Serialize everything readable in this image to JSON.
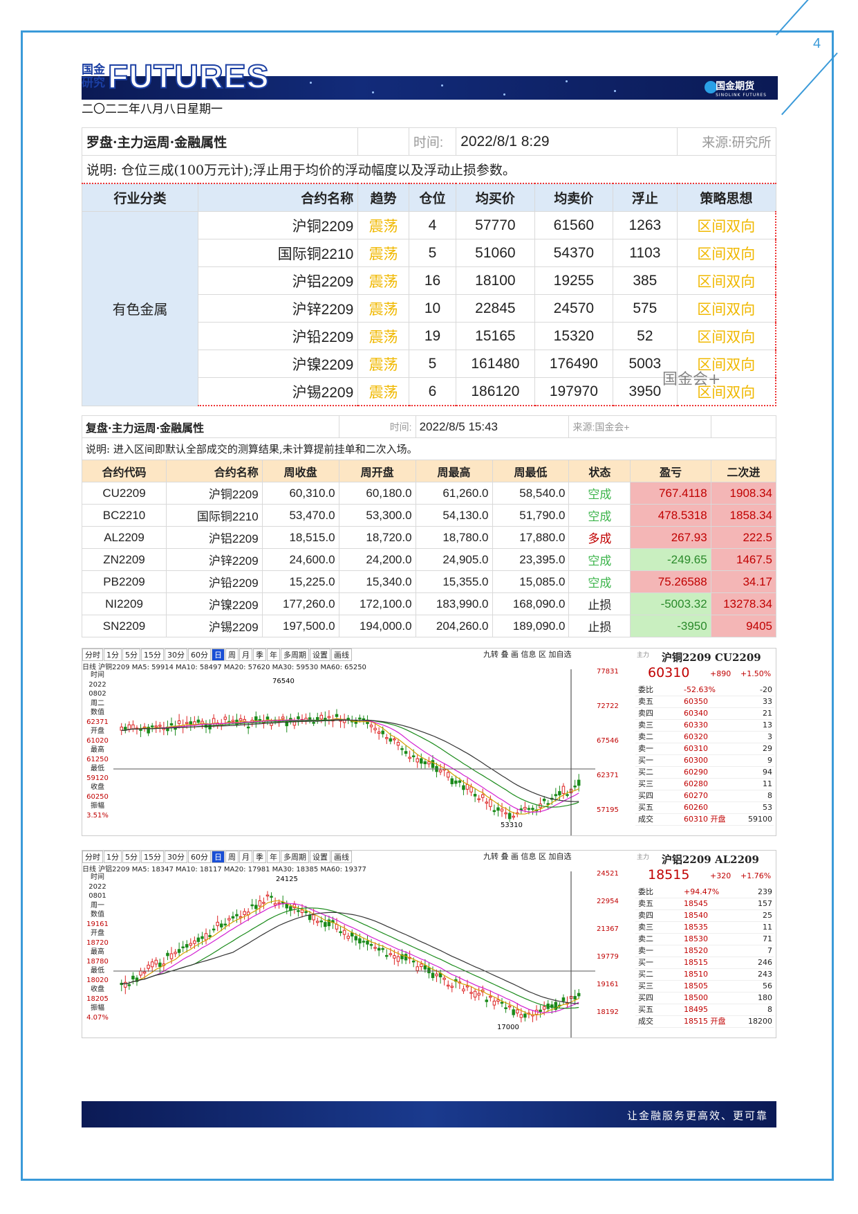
{
  "page_number": "4",
  "brand": {
    "logo_line1": "国金",
    "logo_line2": "研究",
    "title": "FUTURES",
    "company": "国金期货",
    "company_en": "SINOLINK FUTURES"
  },
  "date_line": "二〇二二年八月八日星期一",
  "watermark": "国金会+",
  "table1": {
    "title": "罗盘·主力运周·金融属性",
    "time_label": "时间:",
    "time_value": "2022/8/1 8:29",
    "source": "来源:研究所",
    "note": "说明: 仓位三成(100万元计);浮止用于均价的浮动幅度以及浮动止损参数。",
    "headers": [
      "行业分类",
      "合约名称",
      "趋势",
      "仓位",
      "均买价",
      "均卖价",
      "浮止",
      "策略思想"
    ],
    "category": "有色金属",
    "rows": [
      {
        "name": "沪铜2209",
        "trend": "震荡",
        "pos": "4",
        "buy": "57770",
        "sell": "61560",
        "stop": "1263",
        "strategy": "区间双向"
      },
      {
        "name": "国际铜2210",
        "trend": "震荡",
        "pos": "5",
        "buy": "51060",
        "sell": "54370",
        "stop": "1103",
        "strategy": "区间双向"
      },
      {
        "name": "沪铝2209",
        "trend": "震荡",
        "pos": "16",
        "buy": "18100",
        "sell": "19255",
        "stop": "385",
        "strategy": "区间双向"
      },
      {
        "name": "沪锌2209",
        "trend": "震荡",
        "pos": "10",
        "buy": "22845",
        "sell": "24570",
        "stop": "575",
        "strategy": "区间双向"
      },
      {
        "name": "沪铅2209",
        "trend": "震荡",
        "pos": "19",
        "buy": "15165",
        "sell": "15320",
        "stop": "52",
        "strategy": "区间双向"
      },
      {
        "name": "沪镍2209",
        "trend": "震荡",
        "pos": "5",
        "buy": "161480",
        "sell": "176490",
        "stop": "5003",
        "strategy": "区间双向"
      },
      {
        "name": "沪锡2209",
        "trend": "震荡",
        "pos": "6",
        "buy": "186120",
        "sell": "197970",
        "stop": "3950",
        "strategy": "区间双向"
      }
    ]
  },
  "table2": {
    "title": "复盘·主力运周·金融属性",
    "time_label": "时间:",
    "time_value": "2022/8/5 15:43",
    "source": "来源:国金会+",
    "note": "说明: 进入区间即默认全部成交的测算结果,未计算提前挂单和二次入场。",
    "headers": [
      "合约代码",
      "合约名称",
      "周收盘",
      "周开盘",
      "周最高",
      "周最低",
      "状态",
      "盈亏",
      "二次进"
    ],
    "rows": [
      {
        "code": "CU2209",
        "name": "沪铜2209",
        "close": "60,310.0",
        "open": "60,180.0",
        "high": "61,260.0",
        "low": "58,540.0",
        "status": "空成",
        "pl": "767.4118",
        "second": "1908.34",
        "sign": "pos",
        "scolor": "green"
      },
      {
        "code": "BC2210",
        "name": "国际铜2210",
        "close": "53,470.0",
        "open": "53,300.0",
        "high": "54,130.0",
        "low": "51,790.0",
        "status": "空成",
        "pl": "478.5318",
        "second": "1858.34",
        "sign": "pos",
        "scolor": "green"
      },
      {
        "code": "AL2209",
        "name": "沪铝2209",
        "close": "18,515.0",
        "open": "18,720.0",
        "high": "18,780.0",
        "low": "17,880.0",
        "status": "多成",
        "pl": "267.93",
        "second": "222.5",
        "sign": "pos",
        "scolor": "red"
      },
      {
        "code": "ZN2209",
        "name": "沪锌2209",
        "close": "24,600.0",
        "open": "24,200.0",
        "high": "24,905.0",
        "low": "23,395.0",
        "status": "空成",
        "pl": "-249.65",
        "second": "1467.5",
        "sign": "neg",
        "scolor": "green"
      },
      {
        "code": "PB2209",
        "name": "沪铅2209",
        "close": "15,225.0",
        "open": "15,340.0",
        "high": "15,355.0",
        "low": "15,085.0",
        "status": "空成",
        "pl": "75.26588",
        "second": "34.17",
        "sign": "pos",
        "scolor": "green"
      },
      {
        "code": "NI2209",
        "name": "沪镍2209",
        "close": "177,260.0",
        "open": "172,100.0",
        "high": "183,990.0",
        "low": "168,090.0",
        "status": "止损",
        "pl": "-5003.32",
        "second": "13278.34",
        "sign": "neg",
        "scolor": "plain"
      },
      {
        "code": "SN2209",
        "name": "沪锡2209",
        "close": "197,500.0",
        "open": "194,000.0",
        "high": "204,260.0",
        "low": "189,090.0",
        "status": "止损",
        "pl": "-3950",
        "second": "9405",
        "sign": "neg",
        "scolor": "plain"
      }
    ]
  },
  "charts": [
    {
      "toolbar": [
        "分时",
        "1分",
        "5分",
        "15分",
        "30分",
        "60分",
        "日",
        "周",
        "月",
        "季",
        "年",
        "多周期",
        "设置",
        "画线"
      ],
      "tools": "九转 叠 画 信息 区 加自选",
      "ma_line": "日线 沪铜2209 MA5: 59914 MA10: 58497 MA20: 57620 MA30: 59530 MA60: 65250",
      "side": [
        "时间",
        "2022",
        "0802",
        "周二",
        "数值",
        "62371",
        "开盘",
        "61020",
        "最高",
        "61250",
        "最低",
        "59120",
        "收盘",
        "60250",
        "振幅",
        "3.51%"
      ],
      "y_ticks": [
        "77831",
        "72722",
        "67546",
        "62371",
        "57195"
      ],
      "marks": {
        "high": "76540",
        "low": "53310"
      },
      "quote": {
        "main": "主力",
        "title": "沪铜2209 CU2209",
        "price": "60310",
        "change": "+890",
        "pct": "+1.50%",
        "rows": [
          [
            "委比",
            "-52.63%",
            "-20"
          ],
          [
            "卖五",
            "60350",
            "33"
          ],
          [
            "卖四",
            "60340",
            "21"
          ],
          [
            "卖三",
            "60330",
            "13"
          ],
          [
            "卖二",
            "60320",
            "3"
          ],
          [
            "卖一",
            "60310",
            "29"
          ],
          [
            "买一",
            "60300",
            "9"
          ],
          [
            "买二",
            "60290",
            "94"
          ],
          [
            "买三",
            "60280",
            "11"
          ],
          [
            "买四",
            "60270",
            "8"
          ],
          [
            "买五",
            "60260",
            "53"
          ],
          [
            "成交",
            "60310 开盘",
            "59100"
          ]
        ]
      },
      "chart_data": {
        "type": "candlestick",
        "series_shape": "rise to ~76540 then decline to ~53310, rebound to ~60310",
        "y_range": [
          52000,
          79000
        ]
      }
    },
    {
      "toolbar": [
        "分时",
        "1分",
        "5分",
        "15分",
        "30分",
        "60分",
        "日",
        "周",
        "月",
        "季",
        "年",
        "多周期",
        "设置",
        "画线"
      ],
      "tools": "九转 叠 画 信息 区 加自选",
      "ma_line": "日线 沪铝2209 MA5: 18347 MA10: 18117 MA20: 17981 MA30: 18385 MA60: 19377",
      "side": [
        "时间",
        "2022",
        "0801",
        "周一",
        "数值",
        "19161",
        "开盘",
        "18720",
        "最高",
        "18780",
        "最低",
        "18020",
        "收盘",
        "18205",
        "振幅",
        "4.07%"
      ],
      "y_ticks": [
        "24521",
        "22954",
        "21367",
        "19779",
        "19161",
        "18192"
      ],
      "marks": {
        "high": "24125",
        "low": "17000"
      },
      "quote": {
        "main": "主力",
        "title": "沪铝2209 AL2209",
        "price": "18515",
        "change": "+320",
        "pct": "+1.76%",
        "rows": [
          [
            "委比",
            "+94.47%",
            "239"
          ],
          [
            "卖五",
            "18545",
            "157"
          ],
          [
            "卖四",
            "18540",
            "25"
          ],
          [
            "卖三",
            "18535",
            "11"
          ],
          [
            "卖二",
            "18530",
            "71"
          ],
          [
            "卖一",
            "18520",
            "7"
          ],
          [
            "买一",
            "18515",
            "246"
          ],
          [
            "买二",
            "18510",
            "243"
          ],
          [
            "买三",
            "18505",
            "56"
          ],
          [
            "买四",
            "18500",
            "180"
          ],
          [
            "买五",
            "18495",
            "8"
          ],
          [
            "成交",
            "18515 开盘",
            "18200"
          ]
        ]
      },
      "chart_data": {
        "type": "candlestick",
        "series_shape": "rise to ~24125 then decline to ~17000, rebound to ~18515",
        "y_range": [
          16800,
          24800
        ]
      }
    }
  ],
  "footer": {
    "slogan": "让金融服务更高效、更可靠"
  },
  "colors": {
    "frame": "#3a9ad9",
    "header_blue": "#dce9f7",
    "header_orange": "#fde6c4",
    "trend_gold": "#f0b800",
    "profit_bg": "#f4b6b6",
    "loss_bg": "#c9efc0"
  }
}
